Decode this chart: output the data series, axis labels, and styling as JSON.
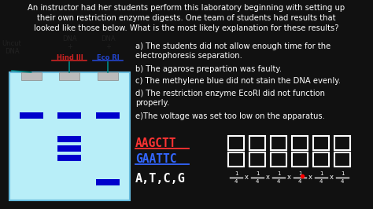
{
  "bg_color": "#111111",
  "text_color": "#ffffff",
  "title_text": "An instructor had her students perform this laboratory beginning with setting up\ntheir own restriction enzyme digests. One team of students had results that\nlooked like those below. What is the most likely explanation for these results?",
  "answer_a": "a) The students did not allow enough time for the\nelectrophoresis separation.",
  "answer_b": "b) The agarose prepartion was faulty.",
  "answer_c": "c) The methylene blue did not stain the DNA evenly.",
  "answer_d": "d) The restriction enzyme EcoRI did not function\nproperly.",
  "answer_e": "e)The voltage was set too low on the apparatus.",
  "gel_bg": "#b8eef8",
  "gel_border": "#66bbdd",
  "well_color": "#bbbbbb",
  "band_color": "#0000cc",
  "aagctt_color": "#ff3333",
  "gaattc_color": "#3366ff",
  "atcg_color": "#ffffff",
  "label_uncut_color": "#222222",
  "label_hindiii_color": "#cc2222",
  "label_ecori_color": "#2244cc",
  "teal_line": "#008888",
  "font_size_title": 7.2,
  "font_size_answers": 7.2,
  "font_size_labels": 6.0,
  "font_size_seq": 10.5,
  "font_size_atcg": 11.0
}
